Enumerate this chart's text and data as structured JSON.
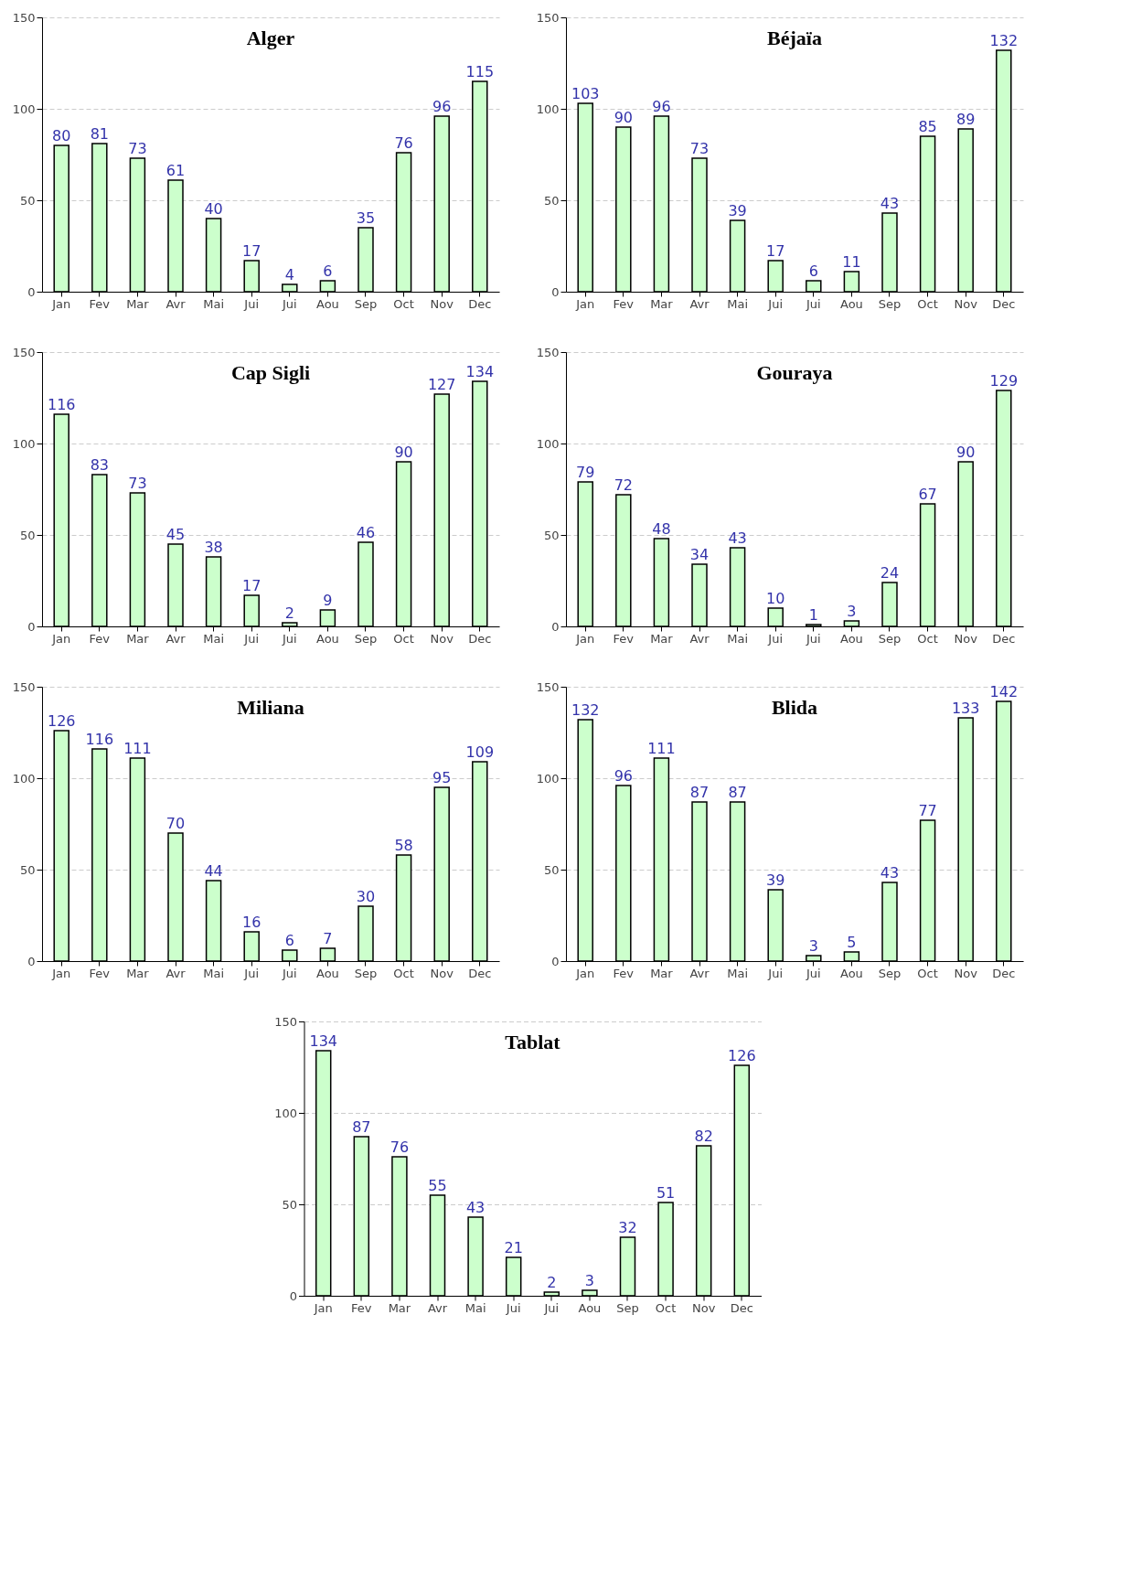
{
  "chart_data": [
    {
      "type": "bar",
      "title": "Alger",
      "categories": [
        "Jan",
        "Fev",
        "Mar",
        "Avr",
        "Mai",
        "Jui",
        "Jui",
        "Aou",
        "Sep",
        "Oct",
        "Nov",
        "Dec"
      ],
      "values": [
        80,
        81,
        73,
        61,
        40,
        17,
        4,
        6,
        35,
        76,
        96,
        115
      ],
      "color": "#ccffcc",
      "ylim": [
        0,
        150
      ],
      "yticks": [
        0,
        50,
        100,
        150
      ],
      "grid": "y",
      "data_labels": true
    },
    {
      "type": "bar",
      "title": "Béjaïa",
      "categories": [
        "Jan",
        "Fev",
        "Mar",
        "Avr",
        "Mai",
        "Jui",
        "Jui",
        "Aou",
        "Sep",
        "Oct",
        "Nov",
        "Dec"
      ],
      "values": [
        103,
        90,
        96,
        73,
        39,
        17,
        6,
        11,
        43,
        85,
        89,
        132
      ],
      "color": "#ccffcc",
      "ylim": [
        0,
        150
      ],
      "yticks": [
        0,
        50,
        100,
        150
      ],
      "grid": "y",
      "data_labels": true
    },
    {
      "type": "bar",
      "title": "Cap Sigli",
      "categories": [
        "Jan",
        "Fev",
        "Mar",
        "Avr",
        "Mai",
        "Jui",
        "Jui",
        "Aou",
        "Sep",
        "Oct",
        "Nov",
        "Dec"
      ],
      "values": [
        116,
        83,
        73,
        45,
        38,
        17,
        2,
        9,
        46,
        90,
        127,
        134
      ],
      "color": "#ccffcc",
      "ylim": [
        0,
        150
      ],
      "yticks": [
        0,
        50,
        100,
        150
      ],
      "grid": "y",
      "data_labels": true
    },
    {
      "type": "bar",
      "title": "Gouraya",
      "categories": [
        "Jan",
        "Fev",
        "Mar",
        "Avr",
        "Mai",
        "Jui",
        "Jui",
        "Aou",
        "Sep",
        "Oct",
        "Nov",
        "Dec"
      ],
      "values": [
        79,
        72,
        48,
        34,
        43,
        10,
        1,
        3,
        24,
        67,
        90,
        129
      ],
      "color": "#ccffcc",
      "ylim": [
        0,
        150
      ],
      "yticks": [
        0,
        50,
        100,
        150
      ],
      "grid": "y",
      "data_labels": true
    },
    {
      "type": "bar",
      "title": "Miliana",
      "categories": [
        "Jan",
        "Fev",
        "Mar",
        "Avr",
        "Mai",
        "Jui",
        "Jui",
        "Aou",
        "Sep",
        "Oct",
        "Nov",
        "Dec"
      ],
      "values": [
        126,
        116,
        111,
        70,
        44,
        16,
        6,
        7,
        30,
        58,
        95,
        109
      ],
      "color": "#ccffcc",
      "ylim": [
        0,
        150
      ],
      "yticks": [
        0,
        50,
        100,
        150
      ],
      "grid": "y",
      "data_labels": true
    },
    {
      "type": "bar",
      "title": "Blida",
      "categories": [
        "Jan",
        "Fev",
        "Mar",
        "Avr",
        "Mai",
        "Jui",
        "Jui",
        "Aou",
        "Sep",
        "Oct",
        "Nov",
        "Dec"
      ],
      "values": [
        132,
        96,
        111,
        87,
        87,
        39,
        3,
        5,
        43,
        77,
        133,
        142
      ],
      "color": "#ccffcc",
      "ylim": [
        0,
        150
      ],
      "yticks": [
        0,
        50,
        100,
        150
      ],
      "grid": "y",
      "data_labels": true
    },
    {
      "type": "bar",
      "title": "Tablat",
      "categories": [
        "Jan",
        "Fev",
        "Mar",
        "Avr",
        "Mai",
        "Jui",
        "Jui",
        "Aou",
        "Sep",
        "Oct",
        "Nov",
        "Dec"
      ],
      "values": [
        134,
        87,
        76,
        55,
        43,
        21,
        2,
        3,
        32,
        51,
        82,
        126
      ],
      "color": "#ccffcc",
      "ylim": [
        0,
        150
      ],
      "yticks": [
        0,
        50,
        100,
        150
      ],
      "grid": "y",
      "data_labels": true
    }
  ]
}
